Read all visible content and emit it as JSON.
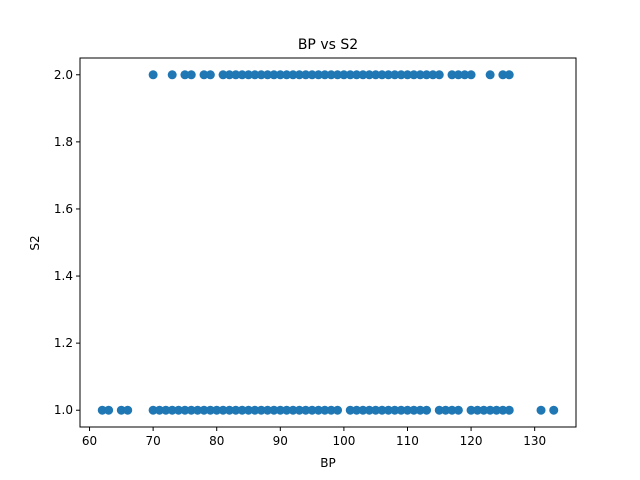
{
  "chart_data": {
    "type": "scatter",
    "title": "BP vs S2",
    "xlabel": "BP",
    "ylabel": "S2",
    "xlim": [
      58.5,
      136.5
    ],
    "ylim": [
      0.95,
      2.05
    ],
    "xticks": [
      "60",
      "70",
      "80",
      "90",
      "100",
      "110",
      "120",
      "130"
    ],
    "yticks": [
      "1.0",
      "1.2",
      "1.4",
      "1.6",
      "1.8",
      "2.0"
    ],
    "grid": false,
    "color": "#1f77b4",
    "series": [
      {
        "values_y": 2.0,
        "x": [
          70,
          73,
          75,
          76,
          78,
          79,
          81,
          82,
          83,
          84,
          85,
          86,
          87,
          88,
          89,
          90,
          91,
          92,
          93,
          94,
          95,
          96,
          97,
          98,
          99,
          100,
          101,
          102,
          103,
          104,
          105,
          106,
          107,
          108,
          109,
          110,
          111,
          112,
          113,
          114,
          115,
          117,
          118,
          119,
          120,
          123,
          125,
          126
        ]
      },
      {
        "values_y": 1.0,
        "x": [
          62,
          63,
          65,
          66,
          70,
          71,
          72,
          73,
          74,
          75,
          76,
          77,
          78,
          79,
          80,
          81,
          82,
          83,
          84,
          85,
          86,
          87,
          88,
          89,
          90,
          91,
          92,
          93,
          94,
          95,
          96,
          97,
          98,
          99,
          101,
          102,
          103,
          104,
          105,
          106,
          107,
          108,
          109,
          110,
          111,
          112,
          113,
          115,
          116,
          117,
          118,
          120,
          121,
          122,
          123,
          124,
          125,
          126,
          131,
          133
        ]
      }
    ]
  }
}
